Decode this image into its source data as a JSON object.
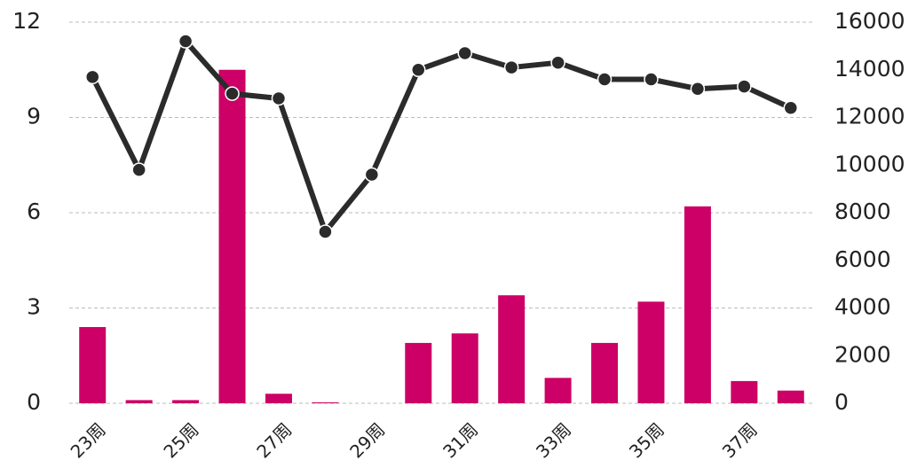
{
  "chart_data": {
    "type": "bar_line",
    "categories": [
      "23周",
      null,
      "25周",
      null,
      "27周",
      null,
      "29周",
      null,
      "31周",
      null,
      "33周",
      null,
      "35周",
      null,
      "37周",
      null
    ],
    "series": [
      {
        "color": "#cc0066",
        "values": [
          2.4,
          0.1,
          0.1,
          10.5,
          0.3,
          0.03,
          0,
          1.9,
          2.2,
          3.4,
          0.8,
          1.9,
          3.2,
          6.2,
          0.7,
          0.4
        ]
      },
      {
        "color": "#2b2b2b",
        "axis": "y2",
        "values": [
          13700,
          9800,
          15200,
          13000,
          12800,
          7200,
          9600,
          14000,
          14700,
          14100,
          14300,
          13600,
          13600,
          13200,
          13300,
          12400
        ]
      }
    ],
    "ylim": [
      0,
      12
    ],
    "yticks": [
      0,
      3,
      6,
      9,
      12
    ],
    "y2lim": [
      0,
      16000
    ],
    "y2ticks": [
      0,
      2000,
      4000,
      6000,
      8000,
      10000,
      12000,
      14000,
      16000
    ],
    "grid": true
  }
}
